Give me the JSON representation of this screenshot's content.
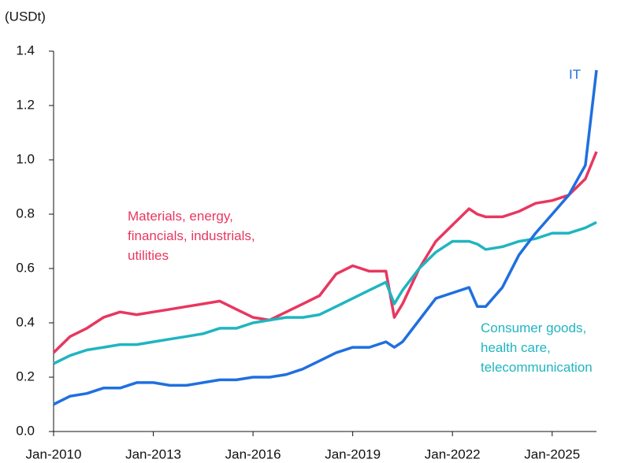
{
  "chart_data": {
    "type": "line",
    "y_label": "(USDt)",
    "x": [
      "Jan-2010",
      "Jul-2010",
      "Jan-2011",
      "Jul-2011",
      "Jan-2012",
      "Jul-2012",
      "Jan-2013",
      "Jul-2013",
      "Jan-2014",
      "Jul-2014",
      "Jan-2015",
      "Jul-2015",
      "Jan-2016",
      "Jul-2016",
      "Jan-2017",
      "Jul-2017",
      "Jan-2018",
      "Jul-2018",
      "Jan-2019",
      "Jul-2019",
      "Jan-2020",
      "Apr-2020",
      "Jul-2020",
      "Jan-2021",
      "Jul-2021",
      "Jan-2022",
      "Jul-2022",
      "Oct-2022",
      "Jan-2023",
      "Jul-2023",
      "Jan-2024",
      "Jul-2024",
      "Jan-2025",
      "Jul-2025",
      "Jan-2026",
      "May-2026"
    ],
    "xlim": [
      "Jan-2010",
      "May-2026"
    ],
    "xticks": [
      "Jan-2010",
      "Jan-2013",
      "Jan-2016",
      "Jan-2019",
      "Jan-2022",
      "Jan-2025"
    ],
    "ylim": [
      0,
      1.4
    ],
    "yticks": [
      {
        "value": 0,
        "label": "0.0"
      },
      0.2,
      0.4,
      0.6,
      0.8,
      {
        "value": 1,
        "label": "1.0"
      },
      1.2,
      1.4
    ],
    "series": [
      {
        "name": "Materials, energy,\nfinancials, industrials,\nutilities",
        "color": "#e8375f",
        "values": [
          0.29,
          0.35,
          0.38,
          0.42,
          0.44,
          0.43,
          0.44,
          0.45,
          0.46,
          0.47,
          0.48,
          0.45,
          0.42,
          0.41,
          0.44,
          0.47,
          0.5,
          0.58,
          0.61,
          0.59,
          0.59,
          0.42,
          0.47,
          0.6,
          0.7,
          0.76,
          0.82,
          0.8,
          0.79,
          0.79,
          0.81,
          0.84,
          0.85,
          0.87,
          0.93,
          1.03
        ]
      },
      {
        "name": "Consumer goods,\nhealth care,\ntelecommunication",
        "color": "#1fb5c0",
        "values": [
          0.25,
          0.28,
          0.3,
          0.31,
          0.32,
          0.32,
          0.33,
          0.34,
          0.35,
          0.36,
          0.38,
          0.38,
          0.4,
          0.41,
          0.42,
          0.42,
          0.43,
          0.46,
          0.49,
          0.52,
          0.55,
          0.47,
          0.52,
          0.6,
          0.66,
          0.7,
          0.7,
          0.69,
          0.67,
          0.68,
          0.7,
          0.71,
          0.73,
          0.73,
          0.75,
          0.77
        ]
      },
      {
        "name": "IT",
        "color": "#1f6fe0",
        "values": [
          0.1,
          0.13,
          0.14,
          0.16,
          0.16,
          0.18,
          0.18,
          0.17,
          0.17,
          0.18,
          0.19,
          0.19,
          0.2,
          0.2,
          0.21,
          0.23,
          0.26,
          0.29,
          0.31,
          0.31,
          0.33,
          0.31,
          0.33,
          0.41,
          0.49,
          0.51,
          0.53,
          0.46,
          0.46,
          0.53,
          0.65,
          0.73,
          0.8,
          0.87,
          0.98,
          1.33
        ]
      }
    ]
  }
}
